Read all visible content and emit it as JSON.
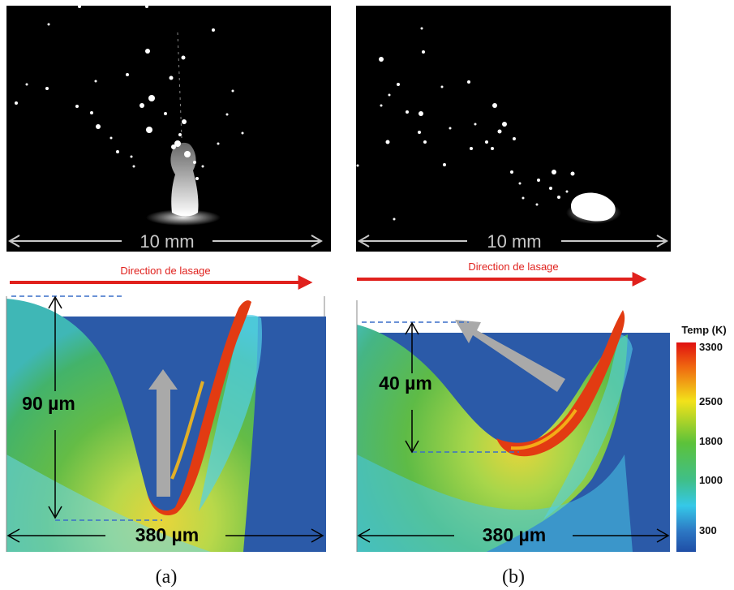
{
  "panels": [
    {
      "caption": "(a)",
      "scale_label": "10 mm",
      "direction_label": "Direction de lasage",
      "depth_label": "90 µm",
      "width_label": "380 µm"
    },
    {
      "caption": "(b)",
      "scale_label": "10 mm",
      "direction_label": "Direction de lasage",
      "depth_label": "40 µm",
      "width_label": "380 µm"
    }
  ],
  "colorbar": {
    "title": "Temp (K)",
    "ticks": [
      "3300",
      "2500",
      "1800",
      "1000",
      "300"
    ],
    "colors": [
      "#e01010",
      "#f2e21a",
      "#5cc23a",
      "#35c8e8",
      "#1f4ea6"
    ]
  },
  "colors": {
    "arrow_direction": "#e0211d",
    "arrow_flow": "#a9a9a9",
    "photo_background": "#000000",
    "solid": "#2b5aa8"
  }
}
